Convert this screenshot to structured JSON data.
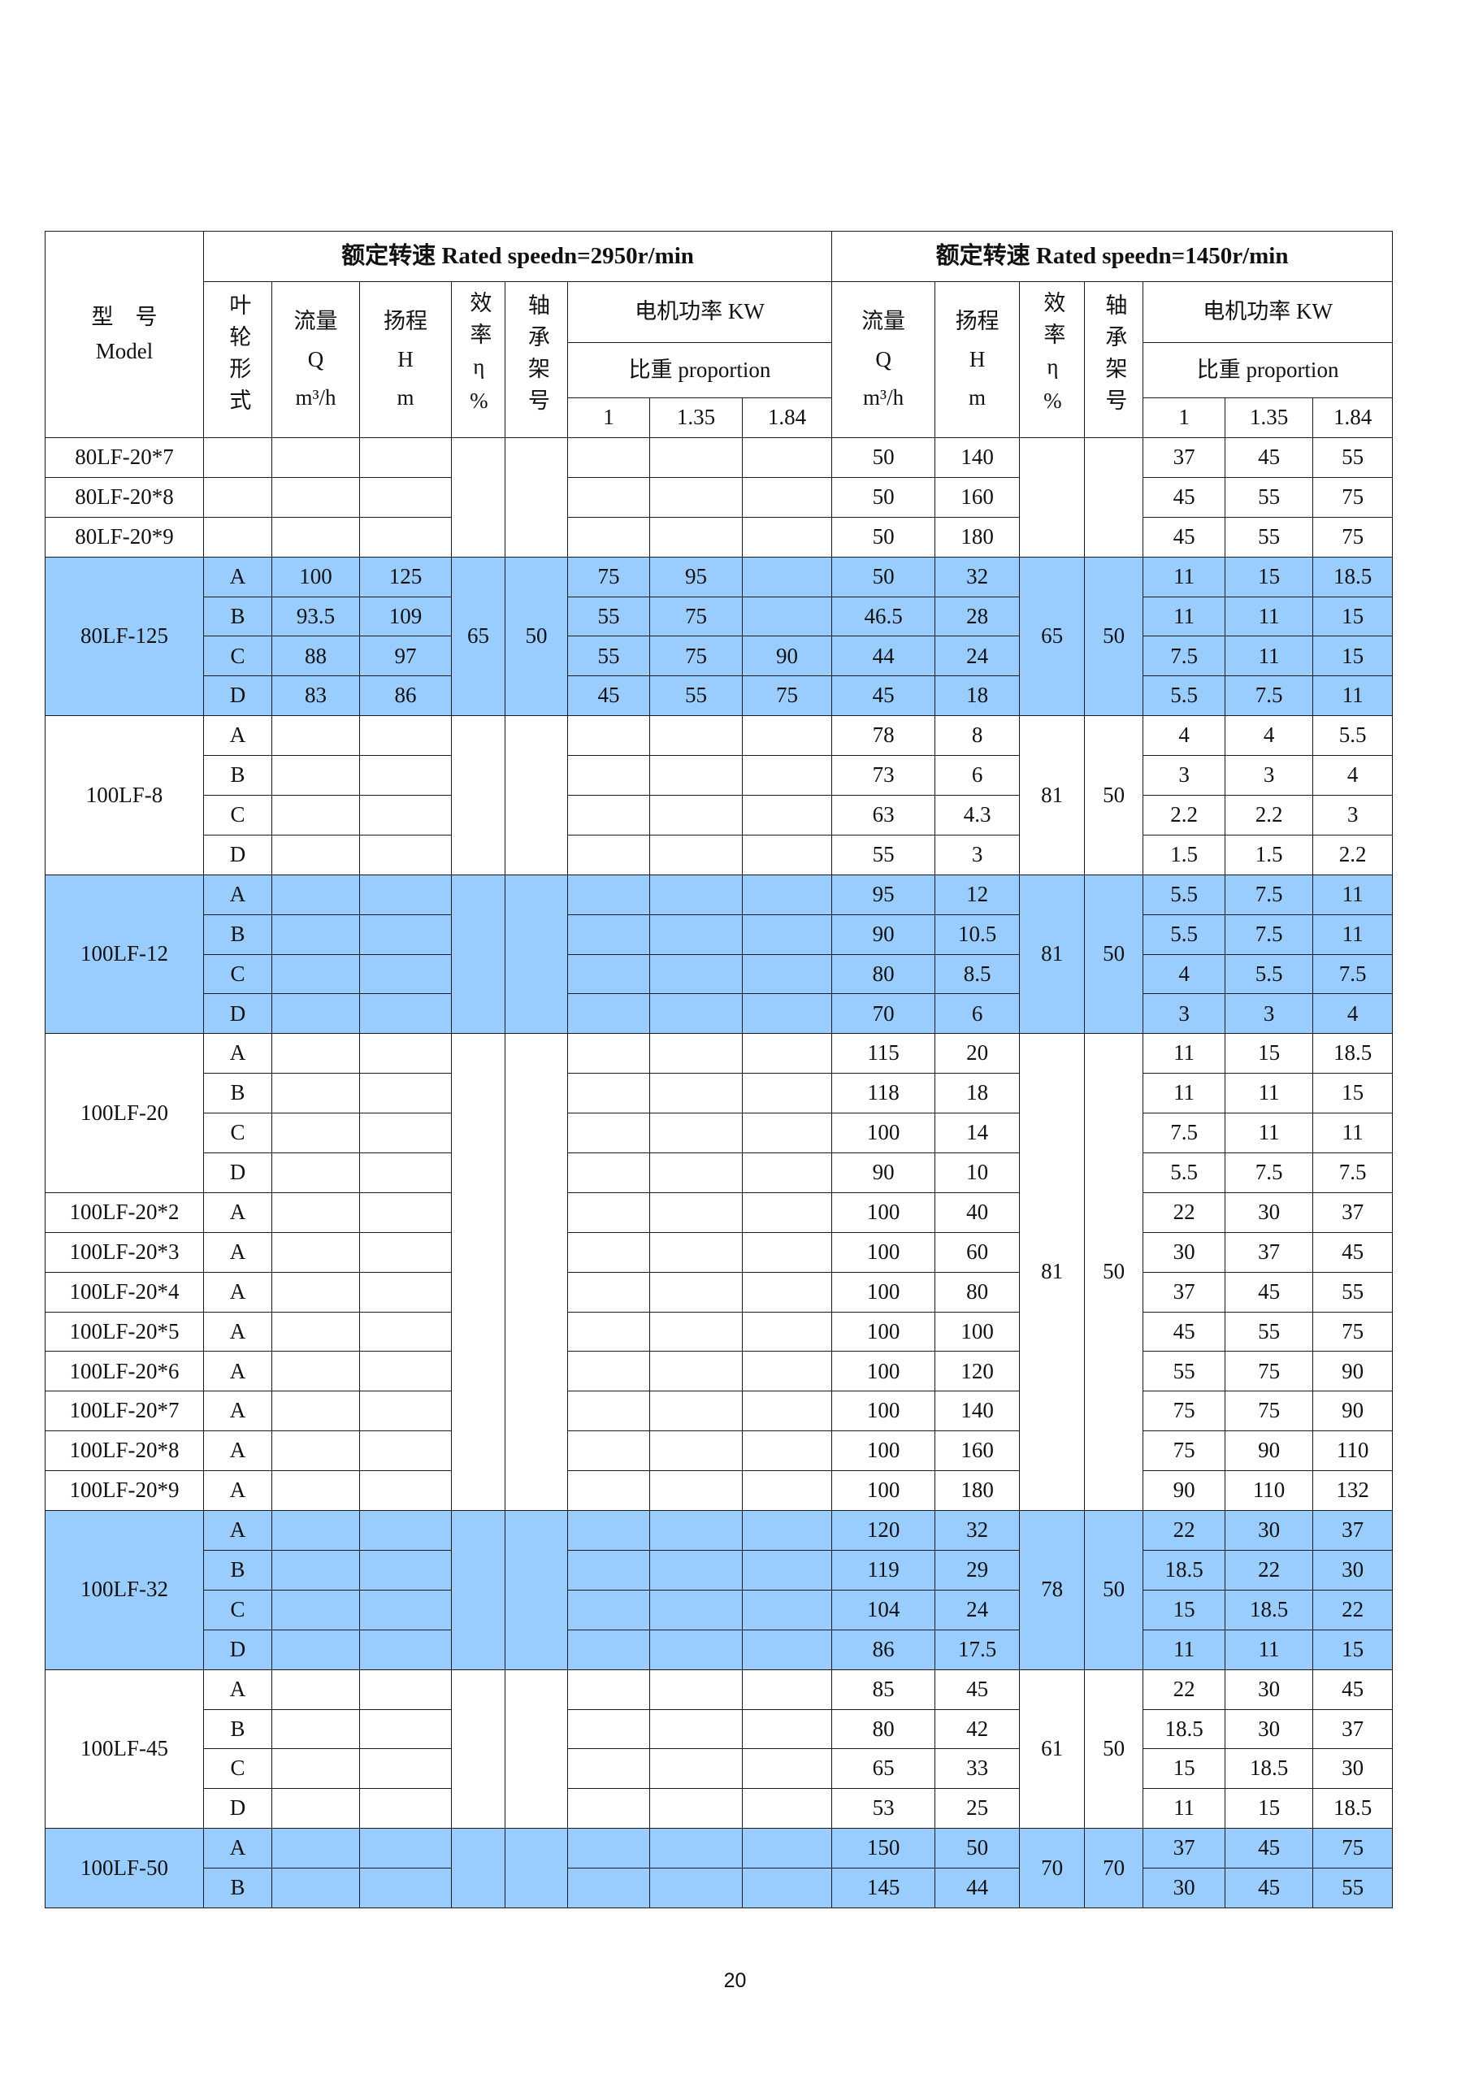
{
  "header": {
    "model_cn": "型　号",
    "model_en": "Model",
    "speed_2950": "额定转速 Rated speedn=2950r/min",
    "speed_1450": "额定转速 Rated speedn=1450r/min",
    "impeller": "叶轮形式",
    "flow_label": "流量",
    "flow_symbol": "Q",
    "flow_unit": "m³/h",
    "head_label": "扬程",
    "head_symbol": "H",
    "head_unit": "m",
    "efficiency": "效率η%",
    "bearing": "轴承架号",
    "motor_power": "电机功率 KW",
    "proportion": "比重 proportion",
    "proportions": [
      "1",
      "1.35",
      "1.84"
    ]
  },
  "highlight_color": "#99ccff",
  "blocks": [
    {
      "highlight": false,
      "eta_2950": "",
      "bearing_2950": "",
      "eta_1450": "",
      "bearing_1450": "",
      "models": [
        {
          "name": "80LF-20*7",
          "span": 1
        },
        {
          "name": "80LF-20*8",
          "span": 1
        },
        {
          "name": "80LF-20*9",
          "span": 1
        }
      ],
      "rows": [
        {
          "impeller": "",
          "q": "",
          "h": "",
          "p": [
            "",
            "",
            ""
          ],
          "q2": "50",
          "h2": "140",
          "p2": [
            "37",
            "45",
            "55"
          ]
        },
        {
          "impeller": "",
          "q": "",
          "h": "",
          "p": [
            "",
            "",
            ""
          ],
          "q2": "50",
          "h2": "160",
          "p2": [
            "45",
            "55",
            "75"
          ]
        },
        {
          "impeller": "",
          "q": "",
          "h": "",
          "p": [
            "",
            "",
            ""
          ],
          "q2": "50",
          "h2": "180",
          "p2": [
            "45",
            "55",
            "75"
          ]
        }
      ]
    },
    {
      "highlight": true,
      "eta_2950": "65",
      "bearing_2950": "50",
      "eta_1450": "65",
      "bearing_1450": "50",
      "models": [
        {
          "name": "80LF-125",
          "span": 4
        }
      ],
      "rows": [
        {
          "impeller": "A",
          "q": "100",
          "h": "125",
          "p": [
            "75",
            "95",
            ""
          ],
          "q2": "50",
          "h2": "32",
          "p2": [
            "11",
            "15",
            "18.5"
          ]
        },
        {
          "impeller": "B",
          "q": "93.5",
          "h": "109",
          "p": [
            "55",
            "75",
            ""
          ],
          "q2": "46.5",
          "h2": "28",
          "p2": [
            "11",
            "11",
            "15"
          ]
        },
        {
          "impeller": "C",
          "q": "88",
          "h": "97",
          "p": [
            "55",
            "75",
            "90"
          ],
          "q2": "44",
          "h2": "24",
          "p2": [
            "7.5",
            "11",
            "15"
          ]
        },
        {
          "impeller": "D",
          "q": "83",
          "h": "86",
          "p": [
            "45",
            "55",
            "75"
          ],
          "q2": "45",
          "h2": "18",
          "p2": [
            "5.5",
            "7.5",
            "11"
          ]
        }
      ]
    },
    {
      "highlight": false,
      "eta_2950": "",
      "bearing_2950": "",
      "eta_1450": "81",
      "bearing_1450": "50",
      "models": [
        {
          "name": "100LF-8",
          "span": 4
        }
      ],
      "rows": [
        {
          "impeller": "A",
          "q": "",
          "h": "",
          "p": [
            "",
            "",
            ""
          ],
          "q2": "78",
          "h2": "8",
          "p2": [
            "4",
            "4",
            "5.5"
          ]
        },
        {
          "impeller": "B",
          "q": "",
          "h": "",
          "p": [
            "",
            "",
            ""
          ],
          "q2": "73",
          "h2": "6",
          "p2": [
            "3",
            "3",
            "4"
          ]
        },
        {
          "impeller": "C",
          "q": "",
          "h": "",
          "p": [
            "",
            "",
            ""
          ],
          "q2": "63",
          "h2": "4.3",
          "p2": [
            "2.2",
            "2.2",
            "3"
          ]
        },
        {
          "impeller": "D",
          "q": "",
          "h": "",
          "p": [
            "",
            "",
            ""
          ],
          "q2": "55",
          "h2": "3",
          "p2": [
            "1.5",
            "1.5",
            "2.2"
          ]
        }
      ]
    },
    {
      "highlight": true,
      "eta_2950": "",
      "bearing_2950": "",
      "eta_1450": "81",
      "bearing_1450": "50",
      "models": [
        {
          "name": "100LF-12",
          "span": 4
        }
      ],
      "rows": [
        {
          "impeller": "A",
          "q": "",
          "h": "",
          "p": [
            "",
            "",
            ""
          ],
          "q2": "95",
          "h2": "12",
          "p2": [
            "5.5",
            "7.5",
            "11"
          ]
        },
        {
          "impeller": "B",
          "q": "",
          "h": "",
          "p": [
            "",
            "",
            ""
          ],
          "q2": "90",
          "h2": "10.5",
          "p2": [
            "5.5",
            "7.5",
            "11"
          ]
        },
        {
          "impeller": "C",
          "q": "",
          "h": "",
          "p": [
            "",
            "",
            ""
          ],
          "q2": "80",
          "h2": "8.5",
          "p2": [
            "4",
            "5.5",
            "7.5"
          ]
        },
        {
          "impeller": "D",
          "q": "",
          "h": "",
          "p": [
            "",
            "",
            ""
          ],
          "q2": "70",
          "h2": "6",
          "p2": [
            "3",
            "3",
            "4"
          ]
        }
      ]
    },
    {
      "highlight": false,
      "eta_2950": "",
      "bearing_2950": "",
      "eta_1450": "81",
      "bearing_1450": "50",
      "models": [
        {
          "name": "100LF-20",
          "span": 4
        },
        {
          "name": "100LF-20*2",
          "span": 1
        },
        {
          "name": "100LF-20*3",
          "span": 1
        },
        {
          "name": "100LF-20*4",
          "span": 1
        },
        {
          "name": "100LF-20*5",
          "span": 1
        },
        {
          "name": "100LF-20*6",
          "span": 1
        },
        {
          "name": "100LF-20*7",
          "span": 1
        },
        {
          "name": "100LF-20*8",
          "span": 1
        },
        {
          "name": "100LF-20*9",
          "span": 1
        }
      ],
      "rows": [
        {
          "impeller": "A",
          "q": "",
          "h": "",
          "p": [
            "",
            "",
            ""
          ],
          "q2": "115",
          "h2": "20",
          "p2": [
            "11",
            "15",
            "18.5"
          ]
        },
        {
          "impeller": "B",
          "q": "",
          "h": "",
          "p": [
            "",
            "",
            ""
          ],
          "q2": "118",
          "h2": "18",
          "p2": [
            "11",
            "11",
            "15"
          ]
        },
        {
          "impeller": "C",
          "q": "",
          "h": "",
          "p": [
            "",
            "",
            ""
          ],
          "q2": "100",
          "h2": "14",
          "p2": [
            "7.5",
            "11",
            "11"
          ]
        },
        {
          "impeller": "D",
          "q": "",
          "h": "",
          "p": [
            "",
            "",
            ""
          ],
          "q2": "90",
          "h2": "10",
          "p2": [
            "5.5",
            "7.5",
            "7.5"
          ]
        },
        {
          "impeller": "A",
          "q": "",
          "h": "",
          "p": [
            "",
            "",
            ""
          ],
          "q2": "100",
          "h2": "40",
          "p2": [
            "22",
            "30",
            "37"
          ]
        },
        {
          "impeller": "A",
          "q": "",
          "h": "",
          "p": [
            "",
            "",
            ""
          ],
          "q2": "100",
          "h2": "60",
          "p2": [
            "30",
            "37",
            "45"
          ]
        },
        {
          "impeller": "A",
          "q": "",
          "h": "",
          "p": [
            "",
            "",
            ""
          ],
          "q2": "100",
          "h2": "80",
          "p2": [
            "37",
            "45",
            "55"
          ]
        },
        {
          "impeller": "A",
          "q": "",
          "h": "",
          "p": [
            "",
            "",
            ""
          ],
          "q2": "100",
          "h2": "100",
          "p2": [
            "45",
            "55",
            "75"
          ]
        },
        {
          "impeller": "A",
          "q": "",
          "h": "",
          "p": [
            "",
            "",
            ""
          ],
          "q2": "100",
          "h2": "120",
          "p2": [
            "55",
            "75",
            "90"
          ]
        },
        {
          "impeller": "A",
          "q": "",
          "h": "",
          "p": [
            "",
            "",
            ""
          ],
          "q2": "100",
          "h2": "140",
          "p2": [
            "75",
            "75",
            "90"
          ]
        },
        {
          "impeller": "A",
          "q": "",
          "h": "",
          "p": [
            "",
            "",
            ""
          ],
          "q2": "100",
          "h2": "160",
          "p2": [
            "75",
            "90",
            "110"
          ]
        },
        {
          "impeller": "A",
          "q": "",
          "h": "",
          "p": [
            "",
            "",
            ""
          ],
          "q2": "100",
          "h2": "180",
          "p2": [
            "90",
            "110",
            "132"
          ]
        }
      ]
    },
    {
      "highlight": true,
      "eta_2950": "",
      "bearing_2950": "",
      "eta_1450": "78",
      "bearing_1450": "50",
      "models": [
        {
          "name": "100LF-32",
          "span": 4
        }
      ],
      "rows": [
        {
          "impeller": "A",
          "q": "",
          "h": "",
          "p": [
            "",
            "",
            ""
          ],
          "q2": "120",
          "h2": "32",
          "p2": [
            "22",
            "30",
            "37"
          ]
        },
        {
          "impeller": "B",
          "q": "",
          "h": "",
          "p": [
            "",
            "",
            ""
          ],
          "q2": "119",
          "h2": "29",
          "p2": [
            "18.5",
            "22",
            "30"
          ]
        },
        {
          "impeller": "C",
          "q": "",
          "h": "",
          "p": [
            "",
            "",
            ""
          ],
          "q2": "104",
          "h2": "24",
          "p2": [
            "15",
            "18.5",
            "22"
          ]
        },
        {
          "impeller": "D",
          "q": "",
          "h": "",
          "p": [
            "",
            "",
            ""
          ],
          "q2": "86",
          "h2": "17.5",
          "p2": [
            "11",
            "11",
            "15"
          ]
        }
      ]
    },
    {
      "highlight": false,
      "eta_2950": "",
      "bearing_2950": "",
      "eta_1450": "61",
      "bearing_1450": "50",
      "models": [
        {
          "name": "100LF-45",
          "span": 4
        }
      ],
      "rows": [
        {
          "impeller": "A",
          "q": "",
          "h": "",
          "p": [
            "",
            "",
            ""
          ],
          "q2": "85",
          "h2": "45",
          "p2": [
            "22",
            "30",
            "45"
          ]
        },
        {
          "impeller": "B",
          "q": "",
          "h": "",
          "p": [
            "",
            "",
            ""
          ],
          "q2": "80",
          "h2": "42",
          "p2": [
            "18.5",
            "30",
            "37"
          ]
        },
        {
          "impeller": "C",
          "q": "",
          "h": "",
          "p": [
            "",
            "",
            ""
          ],
          "q2": "65",
          "h2": "33",
          "p2": [
            "15",
            "18.5",
            "30"
          ]
        },
        {
          "impeller": "D",
          "q": "",
          "h": "",
          "p": [
            "",
            "",
            ""
          ],
          "q2": "53",
          "h2": "25",
          "p2": [
            "11",
            "15",
            "18.5"
          ]
        }
      ]
    },
    {
      "highlight": true,
      "eta_2950": "",
      "bearing_2950": "",
      "eta_1450": "70",
      "bearing_1450": "70",
      "models": [
        {
          "name": "100LF-50",
          "span": 2
        }
      ],
      "rows": [
        {
          "impeller": "A",
          "q": "",
          "h": "",
          "p": [
            "",
            "",
            ""
          ],
          "q2": "150",
          "h2": "50",
          "p2": [
            "37",
            "45",
            "75"
          ]
        },
        {
          "impeller": "B",
          "q": "",
          "h": "",
          "p": [
            "",
            "",
            ""
          ],
          "q2": "145",
          "h2": "44",
          "p2": [
            "30",
            "45",
            "55"
          ]
        }
      ]
    }
  ],
  "page_number": "20"
}
